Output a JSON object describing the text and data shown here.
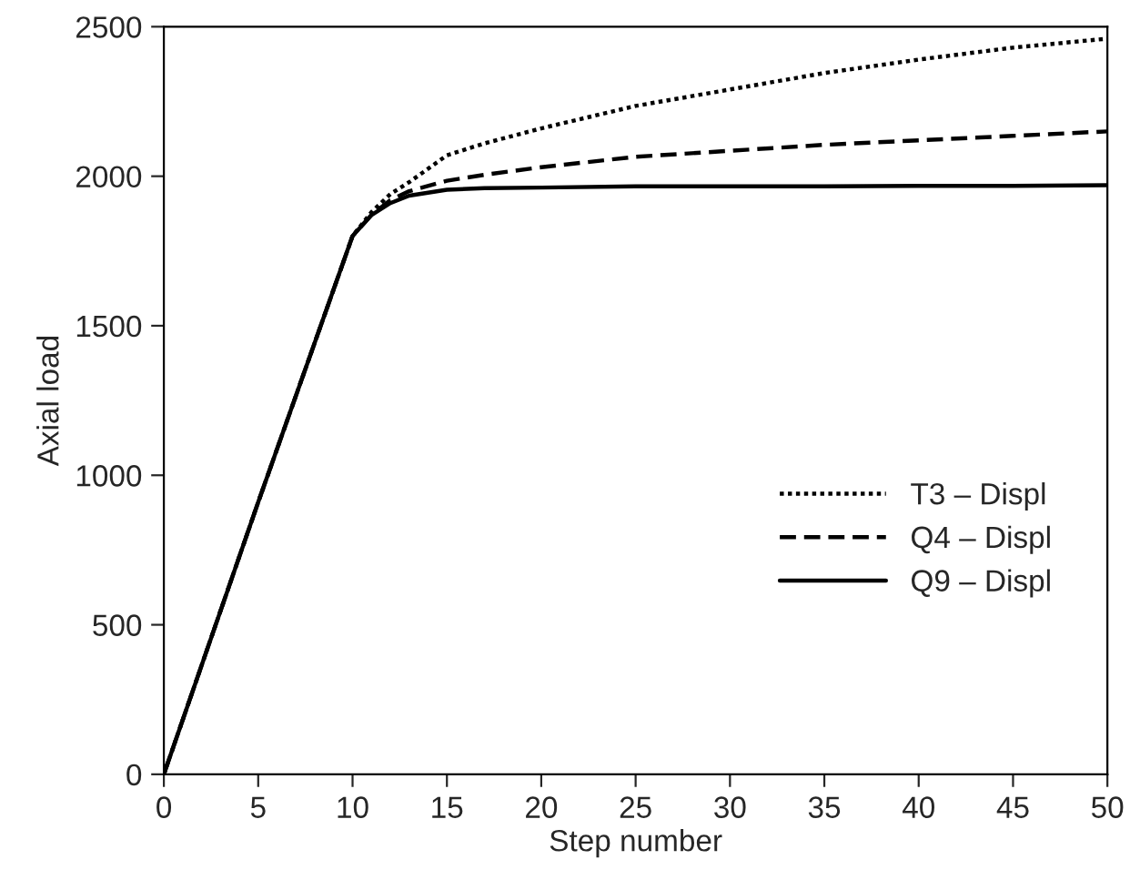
{
  "chart_data": {
    "type": "line",
    "xlabel": "Step number",
    "ylabel": "Axial load",
    "xlim": [
      0,
      50
    ],
    "xticks": [
      0,
      5,
      10,
      15,
      20,
      25,
      30,
      35,
      40,
      45,
      50
    ],
    "ylim": [
      0,
      2500
    ],
    "yticks": [
      0,
      500,
      1000,
      1500,
      2000,
      2500
    ],
    "grid": false,
    "legend": "bottom right",
    "series": [
      {
        "name": "T3 – Displ",
        "color": "#000000",
        "line_style": "dotted",
        "x": [
          0,
          5,
          10,
          11,
          12,
          13,
          15,
          17,
          20,
          25,
          30,
          35,
          40,
          45,
          50
        ],
        "values": [
          0,
          910,
          1800,
          1880,
          1940,
          1980,
          2070,
          2110,
          2160,
          2235,
          2290,
          2345,
          2390,
          2430,
          2460
        ]
      },
      {
        "name": "Q4 – Displ",
        "color": "#000000",
        "line_style": "dashed",
        "x": [
          0,
          5,
          10,
          11,
          12,
          13,
          15,
          17,
          20,
          25,
          30,
          35,
          40,
          45,
          50
        ],
        "values": [
          0,
          910,
          1800,
          1870,
          1920,
          1950,
          1985,
          2005,
          2030,
          2065,
          2085,
          2105,
          2120,
          2135,
          2150
        ]
      },
      {
        "name": "Q9 – Displ",
        "color": "#000000",
        "line_style": "solid",
        "x": [
          0,
          5,
          10,
          11,
          12,
          13,
          15,
          17,
          20,
          25,
          30,
          35,
          40,
          45,
          50
        ],
        "values": [
          0,
          910,
          1800,
          1870,
          1910,
          1935,
          1955,
          1960,
          1962,
          1966,
          1966,
          1966,
          1968,
          1968,
          1970
        ]
      }
    ]
  }
}
